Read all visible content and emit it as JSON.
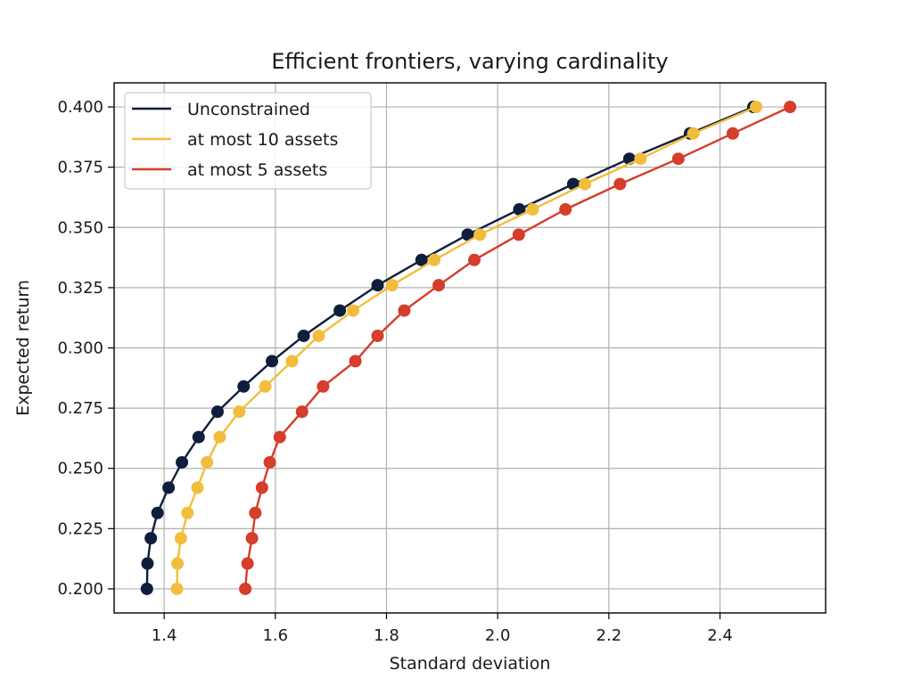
{
  "chart_data": {
    "type": "line",
    "title": "Efficient frontiers, varying cardinality",
    "xlabel": "Standard deviation",
    "ylabel": "Expected return",
    "xlim": [
      1.31,
      2.59
    ],
    "ylim": [
      0.19,
      0.41
    ],
    "x_ticks": [
      1.4,
      1.6,
      1.8,
      2.0,
      2.2,
      2.4
    ],
    "x_tick_labels": [
      "1.4",
      "1.6",
      "1.8",
      "2.0",
      "2.2",
      "2.4"
    ],
    "y_ticks": [
      0.2,
      0.225,
      0.25,
      0.275,
      0.3,
      0.325,
      0.35,
      0.375,
      0.4
    ],
    "y_tick_labels": [
      "0.200",
      "0.225",
      "0.250",
      "0.275",
      "0.300",
      "0.325",
      "0.350",
      "0.375",
      "0.400"
    ],
    "grid": true,
    "legend_position": "top-left",
    "colors": {
      "Unconstrained": "#0f1e3c",
      "at most 10 assets": "#f2bd3c",
      "at most 5 assets": "#d63d2a"
    },
    "series": [
      {
        "name": "Unconstrained",
        "x": [
          1.369,
          1.37,
          1.376,
          1.388,
          1.408,
          1.432,
          1.462,
          1.496,
          1.543,
          1.594,
          1.651,
          1.716,
          1.784,
          1.863,
          1.946,
          2.039,
          2.136,
          2.237,
          2.346,
          2.46
        ],
        "y": [
          0.2,
          0.2105,
          0.221,
          0.2315,
          0.242,
          0.2525,
          0.263,
          0.2735,
          0.284,
          0.2945,
          0.305,
          0.3155,
          0.326,
          0.3365,
          0.347,
          0.3575,
          0.368,
          0.3785,
          0.389,
          0.4
        ]
      },
      {
        "name": "at most 10 assets",
        "x": [
          1.423,
          1.424,
          1.43,
          1.442,
          1.46,
          1.477,
          1.5,
          1.535,
          1.582,
          1.63,
          1.678,
          1.74,
          1.81,
          1.886,
          1.968,
          2.063,
          2.157,
          2.257,
          2.352,
          2.465
        ],
        "y": [
          0.2,
          0.2105,
          0.221,
          0.2315,
          0.242,
          0.2525,
          0.263,
          0.2735,
          0.284,
          0.2945,
          0.305,
          0.3155,
          0.326,
          0.3365,
          0.347,
          0.3575,
          0.368,
          0.3785,
          0.389,
          0.4
        ]
      },
      {
        "name": "at most 5 assets",
        "x": [
          1.546,
          1.55,
          1.558,
          1.564,
          1.576,
          1.59,
          1.608,
          1.648,
          1.686,
          1.744,
          1.784,
          1.832,
          1.894,
          1.958,
          2.038,
          2.122,
          2.22,
          2.325,
          2.423,
          2.526
        ],
        "y": [
          0.2,
          0.2105,
          0.221,
          0.2315,
          0.242,
          0.2525,
          0.263,
          0.2735,
          0.284,
          0.2945,
          0.305,
          0.3155,
          0.326,
          0.3365,
          0.347,
          0.3575,
          0.368,
          0.3785,
          0.389,
          0.4
        ]
      }
    ]
  }
}
